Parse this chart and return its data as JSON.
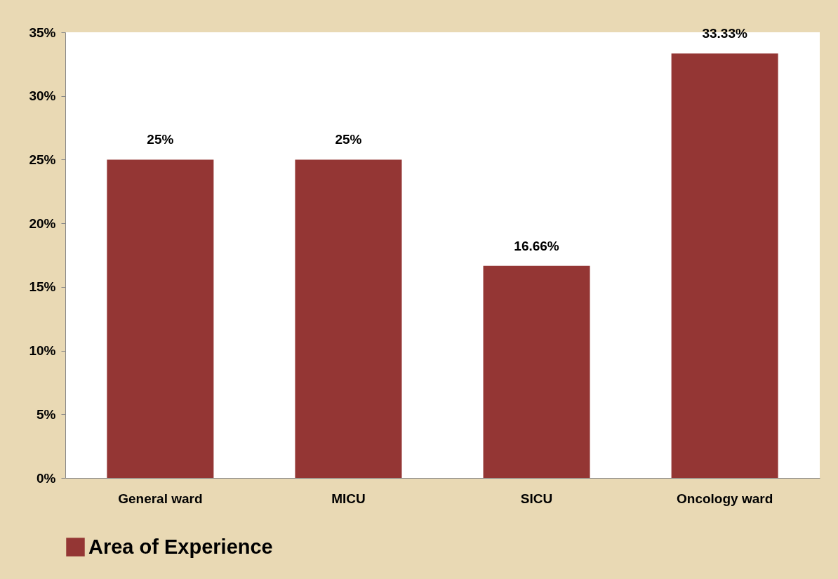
{
  "chart_data": {
    "type": "bar",
    "categories": [
      "General ward",
      "MICU",
      "SICU",
      "Oncology ward"
    ],
    "series": [
      {
        "name": "Area of Experience",
        "color": "#943634",
        "values": [
          25,
          25,
          16.66,
          33.33
        ],
        "value_labels": [
          "25%",
          "25%",
          "16.66%",
          "33.33%"
        ]
      }
    ],
    "ylim": [
      0,
      35
    ],
    "yticks": [
      {
        "value": 0,
        "label": "0%"
      },
      {
        "value": 5,
        "label": "5%"
      },
      {
        "value": 10,
        "label": "10%"
      },
      {
        "value": 15,
        "label": "15%"
      },
      {
        "value": 20,
        "label": "20%"
      },
      {
        "value": 25,
        "label": "25%"
      },
      {
        "value": 30,
        "label": "30%"
      },
      {
        "value": 35,
        "label": "35%"
      }
    ],
    "grid": false,
    "legend": "bottom"
  }
}
